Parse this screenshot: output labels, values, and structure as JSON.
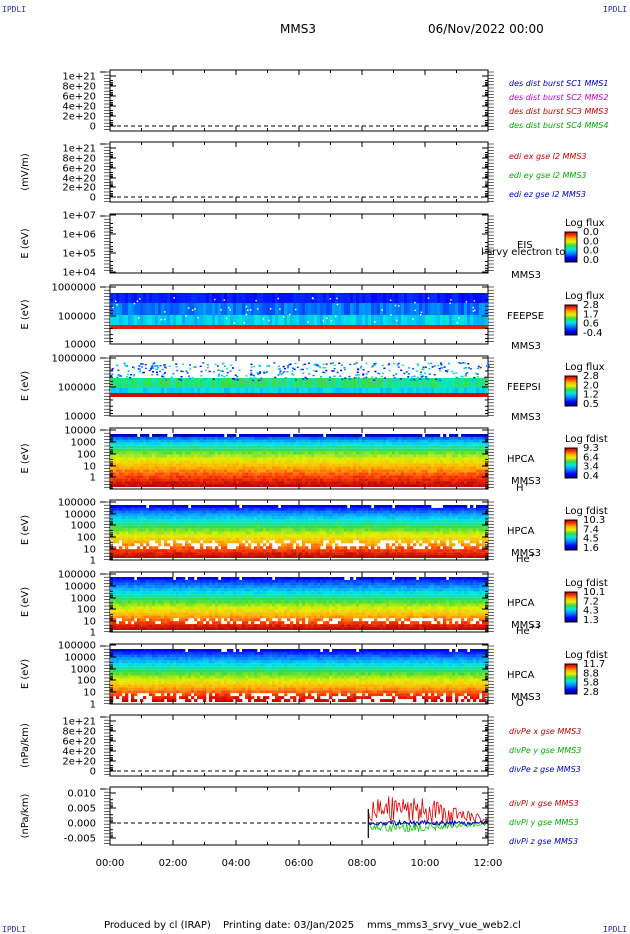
{
  "corner_label": "IPDLI",
  "header": {
    "spacecraft": "MMS3",
    "datetime": "06/Nov/2022 00:00"
  },
  "footer": {
    "produced_by": "Produced by cl (IRAP)",
    "printing_date": "Printing date: 03/Jan/2025",
    "filename": "mms_mms3_srvy_vue_web2.cl"
  },
  "time_axis": {
    "ticks": [
      "00:00",
      "02:00",
      "04:00",
      "06:00",
      "08:00",
      "10:00",
      "12:00"
    ]
  },
  "chart_data": [
    {
      "type": "line",
      "ylabel": "",
      "yticks": [
        "1e+21",
        "8e+20",
        "6e+20",
        "4e+20",
        "2e+20",
        "0"
      ],
      "series": [
        {
          "name": "des dist burst SC1 MMS1",
          "color": "#0000cc",
          "values": []
        },
        {
          "name": "des dist burst SC2 MMS2",
          "color": "#cc00cc",
          "values": []
        },
        {
          "name": "des dist burst SC3 MMS3",
          "color": "#cc0000",
          "values": []
        },
        {
          "name": "des dist burst SC4 MMS4",
          "color": "#00aa00",
          "values": []
        }
      ]
    },
    {
      "type": "line",
      "ylabel": "(mV/m)",
      "yticks": [
        "1e+21",
        "8e+20",
        "6e+20",
        "4e+20",
        "2e+20",
        "0"
      ],
      "series": [
        {
          "name": "edi ex gse l2 MMS3",
          "color": "#cc0000",
          "values": []
        },
        {
          "name": "edi ey gse l2 MMS3",
          "color": "#00aa00",
          "values": []
        },
        {
          "name": "edi ez gse l2 MMS3",
          "color": "#0000cc",
          "values": []
        }
      ]
    },
    {
      "type": "heatmap",
      "ylabel": "E (eV)",
      "yticks": [
        "1e+07",
        "1e+06",
        "1e+05",
        "1e+04"
      ],
      "instrument": "EIS",
      "spacecraft": "MMS3",
      "overlay_text": "l srvy electron to",
      "colorbar_title": "Log flux",
      "colorbar_ticks": [
        "0.0",
        "0.0",
        "0.0",
        "0.0"
      ],
      "data": "empty"
    },
    {
      "type": "heatmap",
      "ylabel": "E (eV)",
      "yticks": [
        "1000000",
        "100000",
        "10000"
      ],
      "instrument": "FEEPSE",
      "spacecraft": "MMS3",
      "colorbar_title": "Log flux",
      "colorbar_ticks": [
        "2.8",
        "1.7",
        "0.6",
        "-0.4"
      ]
    },
    {
      "type": "heatmap",
      "ylabel": "E (eV)",
      "yticks": [
        "1000000",
        "100000",
        "10000"
      ],
      "instrument": "FEEPSI",
      "spacecraft": "MMS3",
      "colorbar_title": "Log flux",
      "colorbar_ticks": [
        "2.8",
        "2.0",
        "1.2",
        "0.5"
      ]
    },
    {
      "type": "heatmap",
      "ylabel": "E (eV)",
      "yticks": [
        "10000",
        "1000",
        "100",
        "10",
        "1"
      ],
      "instrument": "HPCA",
      "spacecraft": "MMS3",
      "species": "H",
      "species_sup": "+",
      "colorbar_title": "Log fdist",
      "colorbar_ticks": [
        "9.3",
        "6.4",
        "3.4",
        "0.4"
      ]
    },
    {
      "type": "heatmap",
      "ylabel": "E (eV)",
      "yticks": [
        "100000",
        "10000",
        "1000",
        "100",
        "10",
        "1"
      ],
      "instrument": "HPCA",
      "spacecraft": "MMS3",
      "species": "He",
      "species_sup": "+",
      "colorbar_title": "Log fdist",
      "colorbar_ticks": [
        "10.3",
        "7.4",
        "4.5",
        "1.6"
      ]
    },
    {
      "type": "heatmap",
      "ylabel": "E (eV)",
      "yticks": [
        "100000",
        "10000",
        "1000",
        "100",
        "10",
        "1"
      ],
      "instrument": "HPCA",
      "spacecraft": "MMS3",
      "species": "He",
      "species_sup": "++",
      "colorbar_title": "Log fdist",
      "colorbar_ticks": [
        "10.1",
        "7.2",
        "4.3",
        "1.3"
      ]
    },
    {
      "type": "heatmap",
      "ylabel": "E (eV)",
      "yticks": [
        "100000",
        "10000",
        "1000",
        "100",
        "10",
        "1"
      ],
      "instrument": "HPCA",
      "spacecraft": "MMS3",
      "species": "O",
      "species_sup": "+",
      "colorbar_title": "Log fdist",
      "colorbar_ticks": [
        "11.7",
        "8.8",
        "5.8",
        "2.8"
      ]
    },
    {
      "type": "line",
      "ylabel": "(nPa/km)",
      "yticks": [
        "1e+21",
        "8e+20",
        "6e+20",
        "4e+20",
        "2e+20",
        "0"
      ],
      "series": [
        {
          "name": "divPe x gse MMS3",
          "color": "#cc0000",
          "values": []
        },
        {
          "name": "divPe y gse MMS3",
          "color": "#00aa00",
          "values": []
        },
        {
          "name": "divPe z gse MMS3",
          "color": "#0000cc",
          "values": []
        }
      ]
    },
    {
      "type": "line",
      "ylabel": "(nPa/km)",
      "yticks": [
        "0.010",
        "0.005",
        "0.000",
        "-0.005"
      ],
      "ylim": [
        -0.008,
        0.011
      ],
      "data_start_hour": 8.2,
      "data_end_hour": 12.0,
      "series": [
        {
          "name": "divPi x gse MMS3",
          "color": "#cc0000",
          "approx_peak": 0.009
        },
        {
          "name": "divPi y gse MMS3",
          "color": "#00aa00",
          "approx_min": -0.003
        },
        {
          "name": "divPi z gse MMS3",
          "color": "#0000cc",
          "approx_range": [
            -0.001,
            0.001
          ]
        }
      ]
    }
  ]
}
